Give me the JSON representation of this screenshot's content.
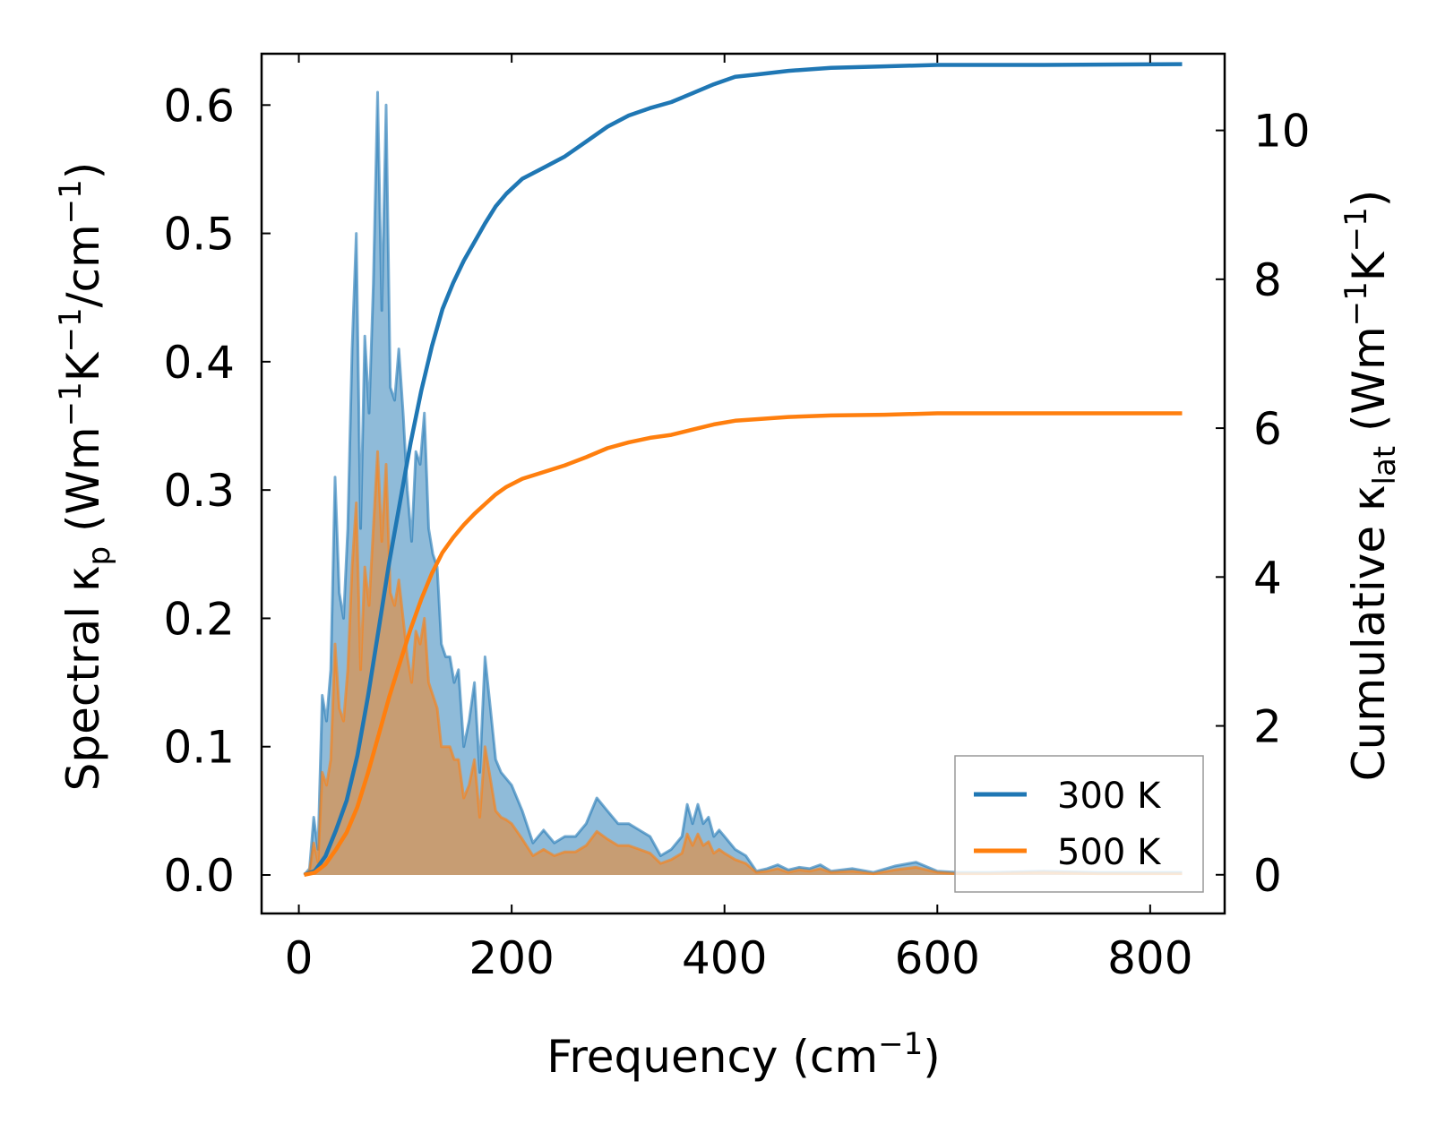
{
  "chart_data": {
    "type": "area",
    "title": "",
    "xlabel": {
      "main": "Frequency (cm",
      "sup": "−1",
      "tail": ")"
    },
    "ylabel_left": {
      "a": "Spectral κ",
      "sub": "p",
      "b": " (Wm",
      "sup1": "−1",
      "c": "K",
      "sup2": "−1",
      "d": "/cm",
      "sup3": "−1",
      "e": ")"
    },
    "ylabel_right": {
      "a": "Cumulative κ",
      "sub": "lat",
      "b": " (Wm",
      "sup1": "−1",
      "c": "K",
      "sup2": "−1",
      "d": ")"
    },
    "xlim": [
      -35,
      870
    ],
    "ylim_left": [
      -0.03,
      0.64
    ],
    "ylim_right": [
      -0.52,
      11.03
    ],
    "x_ticks": [
      0,
      200,
      400,
      600,
      800
    ],
    "x_tick_labels": [
      "0",
      "200",
      "400",
      "600",
      "800"
    ],
    "y_left_ticks": [
      0.0,
      0.1,
      0.2,
      0.3,
      0.4,
      0.5,
      0.6
    ],
    "y_left_tick_labels": [
      "0.0",
      "0.1",
      "0.2",
      "0.3",
      "0.4",
      "0.5",
      "0.6"
    ],
    "y_right_ticks": [
      0,
      2,
      4,
      6,
      8,
      10
    ],
    "y_right_tick_labels": [
      "0",
      "2",
      "4",
      "6",
      "8",
      "10"
    ],
    "legend": {
      "position": "lower-right",
      "entries": [
        "300 K",
        "500 K"
      ]
    },
    "colors": {
      "series_300K": "#1f77b4",
      "series_500K": "#ff7f0e",
      "fill_300K": "#1f77b4",
      "fill_500K": "#ff7f0e"
    },
    "series": [
      {
        "name": "300 K",
        "spectral": {
          "x": [
            5,
            10,
            14,
            18,
            22,
            26,
            30,
            34,
            38,
            42,
            46,
            50,
            54,
            58,
            62,
            66,
            70,
            74,
            78,
            82,
            86,
            90,
            94,
            98,
            102,
            106,
            110,
            114,
            118,
            122,
            126,
            130,
            134,
            138,
            142,
            146,
            150,
            155,
            160,
            165,
            170,
            175,
            180,
            185,
            190,
            195,
            200,
            210,
            220,
            230,
            240,
            250,
            260,
            270,
            280,
            290,
            300,
            310,
            320,
            330,
            340,
            350,
            360,
            365,
            370,
            375,
            380,
            385,
            390,
            395,
            400,
            410,
            420,
            430,
            440,
            450,
            460,
            470,
            480,
            490,
            500,
            520,
            540,
            560,
            580,
            600,
            620,
            650,
            700,
            750,
            800,
            830
          ],
          "y": [
            0,
            0.005,
            0.045,
            0.02,
            0.14,
            0.12,
            0.16,
            0.31,
            0.22,
            0.2,
            0.27,
            0.41,
            0.5,
            0.27,
            0.42,
            0.36,
            0.46,
            0.61,
            0.44,
            0.6,
            0.38,
            0.37,
            0.41,
            0.36,
            0.3,
            0.26,
            0.33,
            0.32,
            0.36,
            0.27,
            0.25,
            0.24,
            0.18,
            0.17,
            0.17,
            0.15,
            0.16,
            0.1,
            0.12,
            0.15,
            0.08,
            0.17,
            0.13,
            0.09,
            0.08,
            0.075,
            0.07,
            0.05,
            0.025,
            0.035,
            0.025,
            0.03,
            0.03,
            0.04,
            0.06,
            0.05,
            0.04,
            0.04,
            0.035,
            0.03,
            0.015,
            0.02,
            0.03,
            0.055,
            0.04,
            0.055,
            0.04,
            0.045,
            0.03,
            0.035,
            0.03,
            0.02,
            0.015,
            0.003,
            0.005,
            0.008,
            0.004,
            0.006,
            0.005,
            0.008,
            0.003,
            0.005,
            0.002,
            0.007,
            0.01,
            0.003,
            0.002,
            0.002,
            0.003,
            0.002,
            0.002,
            0.002
          ]
        },
        "cumulative": {
          "x": [
            5,
            15,
            25,
            35,
            45,
            55,
            65,
            75,
            85,
            95,
            105,
            115,
            125,
            135,
            145,
            155,
            165,
            175,
            185,
            195,
            210,
            230,
            250,
            270,
            290,
            310,
            330,
            350,
            370,
            390,
            410,
            430,
            460,
            500,
            550,
            600,
            700,
            830
          ],
          "y": [
            0,
            0.05,
            0.25,
            0.6,
            1.0,
            1.6,
            2.4,
            3.3,
            4.2,
            5.0,
            5.8,
            6.5,
            7.1,
            7.6,
            7.95,
            8.25,
            8.5,
            8.75,
            8.98,
            9.15,
            9.35,
            9.5,
            9.65,
            9.85,
            10.05,
            10.2,
            10.3,
            10.38,
            10.5,
            10.62,
            10.72,
            10.75,
            10.8,
            10.84,
            10.86,
            10.88,
            10.88,
            10.89
          ]
        }
      },
      {
        "name": "500 K",
        "spectral": {
          "x": [
            5,
            10,
            14,
            18,
            22,
            26,
            30,
            34,
            38,
            42,
            46,
            50,
            54,
            58,
            62,
            66,
            70,
            74,
            78,
            82,
            86,
            90,
            94,
            98,
            102,
            106,
            110,
            114,
            118,
            122,
            126,
            130,
            134,
            138,
            142,
            146,
            150,
            155,
            160,
            165,
            170,
            175,
            180,
            185,
            190,
            195,
            200,
            210,
            220,
            230,
            240,
            250,
            260,
            270,
            280,
            290,
            300,
            310,
            320,
            330,
            340,
            350,
            360,
            365,
            370,
            375,
            380,
            385,
            390,
            395,
            400,
            410,
            420,
            430,
            440,
            450,
            460,
            470,
            480,
            490,
            500,
            520,
            540,
            560,
            580,
            600,
            620,
            650,
            700,
            750,
            800,
            830
          ],
          "y": [
            0,
            0.003,
            0.025,
            0.01,
            0.08,
            0.07,
            0.09,
            0.18,
            0.13,
            0.12,
            0.16,
            0.24,
            0.29,
            0.16,
            0.24,
            0.21,
            0.27,
            0.33,
            0.26,
            0.32,
            0.22,
            0.21,
            0.23,
            0.2,
            0.17,
            0.15,
            0.19,
            0.18,
            0.2,
            0.15,
            0.14,
            0.13,
            0.1,
            0.1,
            0.1,
            0.09,
            0.09,
            0.06,
            0.07,
            0.09,
            0.045,
            0.1,
            0.075,
            0.05,
            0.045,
            0.043,
            0.04,
            0.028,
            0.015,
            0.02,
            0.015,
            0.018,
            0.018,
            0.023,
            0.034,
            0.028,
            0.023,
            0.023,
            0.02,
            0.017,
            0.009,
            0.012,
            0.017,
            0.032,
            0.023,
            0.032,
            0.023,
            0.026,
            0.017,
            0.02,
            0.017,
            0.012,
            0.009,
            0.002,
            0.003,
            0.005,
            0.002,
            0.004,
            0.003,
            0.005,
            0.002,
            0.003,
            0.001,
            0.004,
            0.006,
            0.002,
            0.001,
            0.001,
            0.002,
            0.001,
            0.001,
            0.001
          ]
        },
        "cumulative": {
          "x": [
            5,
            15,
            25,
            35,
            45,
            55,
            65,
            75,
            85,
            95,
            105,
            115,
            125,
            135,
            145,
            155,
            165,
            175,
            185,
            195,
            210,
            230,
            250,
            270,
            290,
            310,
            330,
            350,
            370,
            390,
            410,
            430,
            460,
            500,
            550,
            600,
            700,
            830
          ],
          "y": [
            0,
            0.03,
            0.14,
            0.34,
            0.57,
            0.91,
            1.37,
            1.88,
            2.39,
            2.85,
            3.3,
            3.7,
            4.05,
            4.33,
            4.53,
            4.7,
            4.85,
            4.98,
            5.11,
            5.21,
            5.32,
            5.41,
            5.5,
            5.61,
            5.73,
            5.81,
            5.87,
            5.91,
            5.98,
            6.05,
            6.1,
            6.12,
            6.15,
            6.17,
            6.18,
            6.2,
            6.2,
            6.2
          ]
        }
      }
    ]
  }
}
